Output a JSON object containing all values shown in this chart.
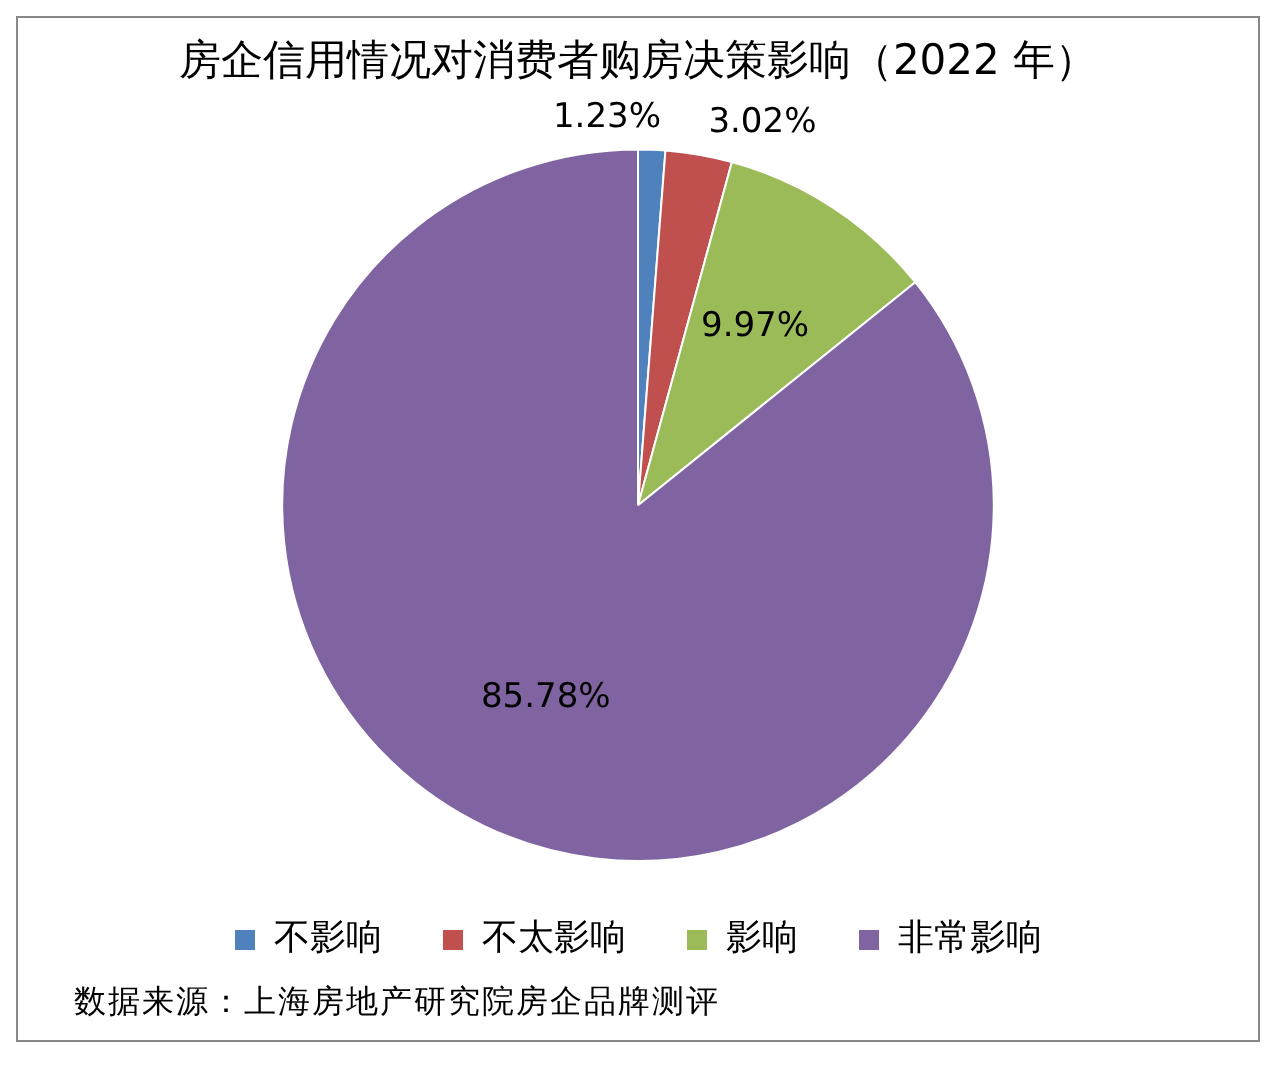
{
  "chart_data": {
    "type": "pie",
    "title": "房企信用情况对消费者购房决策影响（2022 年）",
    "categories": [
      "不影响",
      "不太影响",
      "影响",
      "非常影响"
    ],
    "values": [
      1.23,
      3.02,
      9.97,
      85.78
    ],
    "colors": [
      "#4f81bd",
      "#c0504d",
      "#9bbb59",
      "#8064a2"
    ],
    "value_labels": [
      "1.23%",
      "3.02%",
      "9.97%",
      "85.78%"
    ],
    "legend": "bottom",
    "annotations": [
      "数据来源：上海房地产研究院房企品牌测评"
    ]
  }
}
